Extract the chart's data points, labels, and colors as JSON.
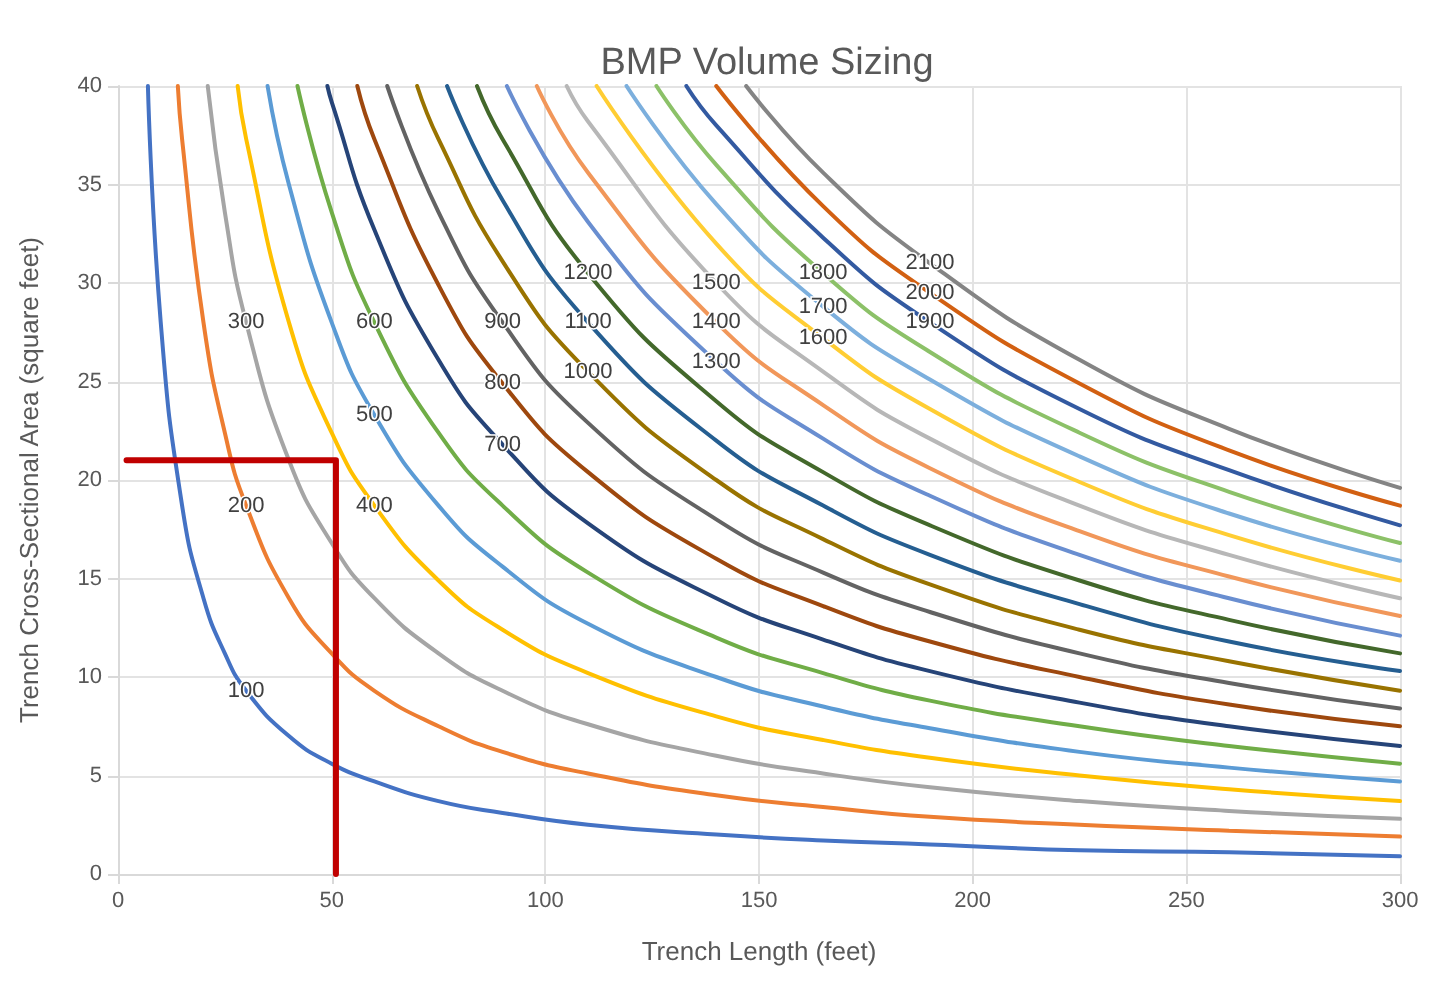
{
  "chart_data": {
    "type": "line",
    "title": "BMP Volume Sizing",
    "xlabel": "Trench Length (feet)",
    "ylabel": "Trench Cross-Sectional Area (square feet)",
    "xlim": [
      0,
      300
    ],
    "ylim": [
      0,
      40
    ],
    "xticks": [
      0,
      50,
      100,
      150,
      200,
      250,
      300
    ],
    "yticks": [
      0,
      5,
      10,
      15,
      20,
      25,
      30,
      35,
      40
    ],
    "grid": true,
    "legend": false,
    "series": [
      {
        "name": "100",
        "color": "#4472c4",
        "x": [
          7,
          10,
          15,
          20,
          25,
          30,
          40,
          50,
          60,
          75,
          90,
          110,
          140,
          165,
          190,
          225,
          260,
          300
        ],
        "values": [
          40,
          28,
          18.7,
          14,
          11.2,
          9.3,
          7,
          5.6,
          4.7,
          3.7,
          3.1,
          2.5,
          2,
          1.7,
          1.5,
          1.2,
          1.1,
          0.9
        ]
      },
      {
        "name": "200",
        "color": "#ed7d31",
        "x": [
          14,
          15,
          20,
          25,
          30,
          40,
          50,
          60,
          75,
          90,
          110,
          140,
          165,
          190,
          225,
          260,
          300
        ],
        "values": [
          40,
          37.3,
          28,
          22.4,
          18.7,
          14,
          11.2,
          9.3,
          7.5,
          6.2,
          5.1,
          4,
          3.4,
          2.9,
          2.5,
          2.2,
          1.9
        ]
      },
      {
        "name": "300",
        "color": "#a5a5a5",
        "x": [
          21,
          25,
          30,
          40,
          50,
          60,
          75,
          90,
          110,
          140,
          165,
          190,
          225,
          260,
          300
        ],
        "values": [
          40,
          33.6,
          28,
          21,
          16.8,
          14,
          11.2,
          9.3,
          7.6,
          6,
          5.1,
          4.4,
          3.7,
          3.2,
          2.8
        ]
      },
      {
        "name": "400",
        "color": "#ffc000",
        "x": [
          28,
          30,
          40,
          50,
          60,
          75,
          90,
          110,
          140,
          165,
          190,
          225,
          260,
          300
        ],
        "values": [
          40,
          37.3,
          28,
          22.4,
          18.7,
          14.9,
          12.4,
          10.2,
          8,
          6.8,
          5.9,
          5,
          4.3,
          3.7
        ]
      },
      {
        "name": "500",
        "color": "#5b9bd5",
        "x": [
          35,
          40,
          50,
          60,
          75,
          90,
          110,
          140,
          165,
          190,
          225,
          260,
          300
        ],
        "values": [
          40,
          35,
          28,
          23.3,
          18.7,
          15.6,
          12.7,
          10,
          8.5,
          7.4,
          6.2,
          5.4,
          4.7
        ]
      },
      {
        "name": "600",
        "color": "#70ad47",
        "x": [
          42,
          50,
          60,
          75,
          90,
          110,
          140,
          165,
          190,
          225,
          260,
          300
        ],
        "values": [
          40,
          33.6,
          28,
          22.4,
          18.7,
          15.3,
          12,
          10.2,
          8.8,
          7.5,
          6.5,
          5.6
        ]
      },
      {
        "name": "700",
        "color": "#264478",
        "x": [
          49,
          50,
          60,
          75,
          90,
          110,
          140,
          165,
          190,
          225,
          260,
          300
        ],
        "values": [
          40,
          39.2,
          32.7,
          26.1,
          21.8,
          17.8,
          14,
          11.9,
          10.3,
          8.7,
          7.5,
          6.5
        ]
      },
      {
        "name": "800",
        "color": "#9e480e",
        "x": [
          56,
          60,
          75,
          90,
          110,
          140,
          165,
          190,
          225,
          260,
          300
        ],
        "values": [
          40,
          37.3,
          29.9,
          24.9,
          20.4,
          16,
          13.6,
          11.8,
          10,
          8.6,
          7.5
        ]
      },
      {
        "name": "900",
        "color": "#636363",
        "x": [
          63,
          75,
          90,
          110,
          140,
          165,
          190,
          225,
          260,
          300
        ],
        "values": [
          40,
          33.6,
          28,
          22.9,
          18,
          15.3,
          13.3,
          11.2,
          9.7,
          8.4
        ]
      },
      {
        "name": "1000",
        "color": "#997300",
        "x": [
          70,
          75,
          90,
          110,
          140,
          165,
          190,
          225,
          260,
          300
        ],
        "values": [
          40,
          37.3,
          31.1,
          25.5,
          20,
          17,
          14.7,
          12.4,
          10.8,
          9.3
        ]
      },
      {
        "name": "1100",
        "color": "#255e91",
        "x": [
          77,
          90,
          110,
          140,
          165,
          190,
          225,
          260,
          300
        ],
        "values": [
          40,
          34.2,
          28,
          22,
          18.7,
          16.2,
          13.7,
          11.8,
          10.3
        ]
      },
      {
        "name": "1200",
        "color": "#43682b",
        "x": [
          84,
          90,
          110,
          140,
          165,
          190,
          225,
          260,
          300
        ],
        "values": [
          40,
          37.3,
          30.5,
          24,
          20.4,
          17.7,
          14.9,
          12.9,
          11.2
        ]
      },
      {
        "name": "1300",
        "color": "#698ed0",
        "x": [
          91,
          110,
          140,
          165,
          190,
          225,
          260,
          300
        ],
        "values": [
          40,
          33.1,
          26,
          22.1,
          19.2,
          16.2,
          14,
          12.1
        ]
      },
      {
        "name": "1400",
        "color": "#f1975a",
        "x": [
          98,
          110,
          140,
          165,
          190,
          225,
          260,
          300
        ],
        "values": [
          40,
          35.6,
          28,
          23.8,
          20.6,
          17.4,
          15.1,
          13.1
        ]
      },
      {
        "name": "1500",
        "color": "#b7b7b7",
        "x": [
          105,
          110,
          140,
          165,
          190,
          225,
          260,
          300
        ],
        "values": [
          40,
          38.2,
          30,
          25.5,
          22.1,
          18.7,
          16.2,
          14
        ]
      },
      {
        "name": "1600",
        "color": "#ffcd33",
        "x": [
          112,
          140,
          165,
          190,
          225,
          260,
          300
        ],
        "values": [
          40,
          32,
          27.2,
          23.6,
          19.9,
          17.2,
          14.9
        ]
      },
      {
        "name": "1700",
        "color": "#7cafdd",
        "x": [
          119,
          140,
          165,
          190,
          225,
          260,
          300
        ],
        "values": [
          40,
          34,
          28.8,
          25.1,
          21.2,
          18.3,
          15.9
        ]
      },
      {
        "name": "1800",
        "color": "#8cc168",
        "x": [
          126,
          140,
          165,
          190,
          225,
          260,
          300
        ],
        "values": [
          40,
          36,
          30.5,
          26.5,
          22.4,
          19.4,
          16.8
        ]
      },
      {
        "name": "1900",
        "color": "#335aa1",
        "x": [
          133,
          140,
          165,
          190,
          225,
          260,
          300
        ],
        "values": [
          40,
          38,
          32.3,
          28,
          23.6,
          20.5,
          17.7
        ]
      },
      {
        "name": "2000",
        "color": "#d26012",
        "x": [
          140,
          165,
          190,
          225,
          260,
          300
        ],
        "values": [
          40,
          33.9,
          29.5,
          24.9,
          21.5,
          18.7
        ]
      },
      {
        "name": "2100",
        "color": "#848484",
        "x": [
          147,
          165,
          190,
          225,
          260,
          300
        ],
        "values": [
          40,
          35.6,
          31,
          26.1,
          22.6,
          19.6
        ]
      },
      {
        "color": "#c00000",
        "x": [
          2,
          51,
          51
        ],
        "values": [
          21,
          21,
          0
        ]
      }
    ]
  }
}
